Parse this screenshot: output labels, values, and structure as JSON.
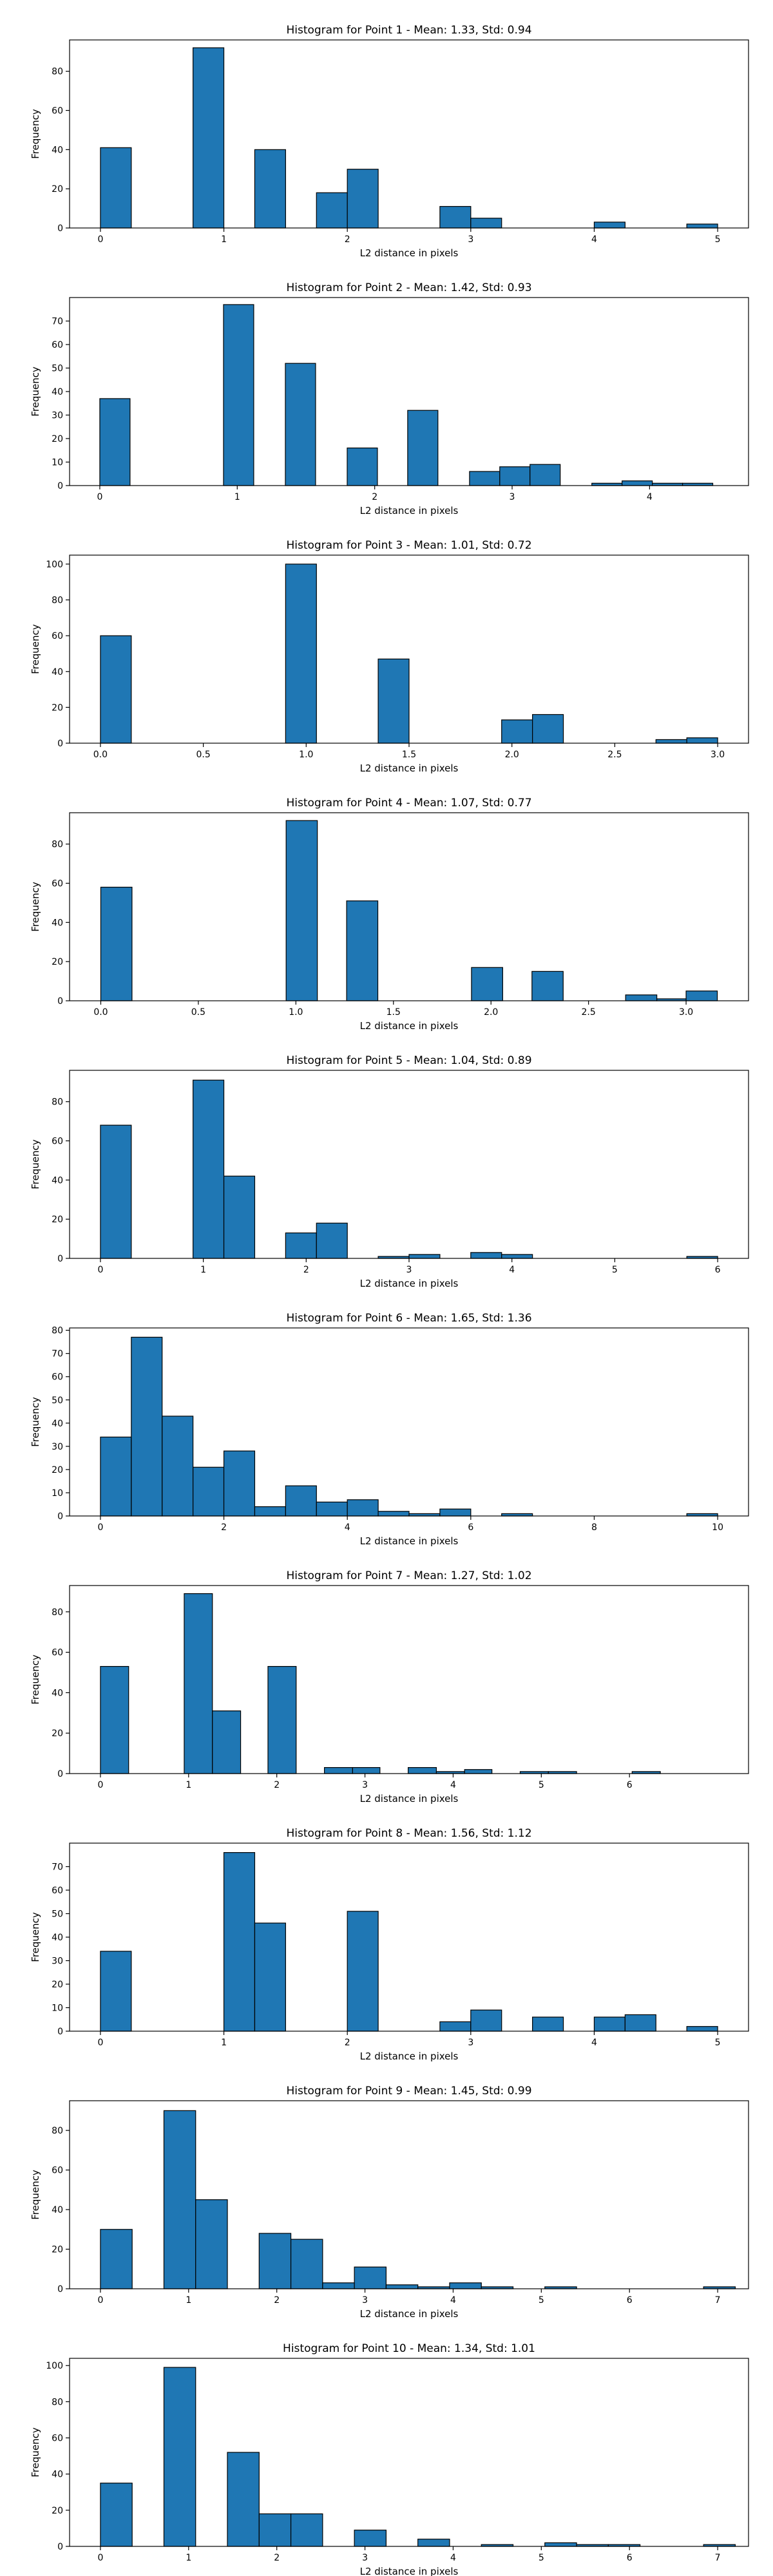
{
  "colors": {
    "bar_fill": "#1f77b4",
    "bar_edge": "#000000",
    "axis": "#000000",
    "background": "#ffffff"
  },
  "chart_data": [
    {
      "type": "bar",
      "title": "Histogram for Point 1 - Mean: 1.33, Std: 0.94",
      "xlabel": "L2 distance in pixels",
      "ylabel": "Frequency",
      "xlim": [
        -0.25,
        5.25
      ],
      "ylim": [
        0,
        96
      ],
      "xticks": [
        0,
        1,
        2,
        3,
        4,
        5
      ],
      "yticks": [
        0,
        20,
        40,
        60,
        80
      ],
      "bins": [
        {
          "x0": 0,
          "x1": 0.25,
          "value": 41
        },
        {
          "x0": 0.75,
          "x1": 1.0,
          "value": 92
        },
        {
          "x0": 1.25,
          "x1": 1.5,
          "value": 40
        },
        {
          "x0": 1.75,
          "x1": 2.0,
          "value": 18
        },
        {
          "x0": 2.0,
          "x1": 2.25,
          "value": 30
        },
        {
          "x0": 2.75,
          "x1": 3.0,
          "value": 11
        },
        {
          "x0": 3.0,
          "x1": 3.25,
          "value": 5
        },
        {
          "x0": 4.0,
          "x1": 4.25,
          "value": 3
        },
        {
          "x0": 4.75,
          "x1": 5.0,
          "value": 2
        }
      ]
    },
    {
      "type": "bar",
      "title": "Histogram for Point 2 - Mean: 1.42, Std: 0.93",
      "xlabel": "L2 distance in pixels",
      "ylabel": "Frequency",
      "xlim": [
        -0.22,
        4.72
      ],
      "ylim": [
        0,
        80
      ],
      "xticks": [
        0,
        1,
        2,
        3,
        4
      ],
      "yticks": [
        0,
        10,
        20,
        30,
        40,
        50,
        60,
        70
      ],
      "bins": [
        {
          "x0": 0,
          "x1": 0.22,
          "value": 37
        },
        {
          "x0": 0.9,
          "x1": 1.12,
          "value": 77
        },
        {
          "x0": 1.35,
          "x1": 1.57,
          "value": 52
        },
        {
          "x0": 1.8,
          "x1": 2.02,
          "value": 16
        },
        {
          "x0": 2.24,
          "x1": 2.46,
          "value": 32
        },
        {
          "x0": 2.69,
          "x1": 2.91,
          "value": 6
        },
        {
          "x0": 2.91,
          "x1": 3.13,
          "value": 8
        },
        {
          "x0": 3.13,
          "x1": 3.35,
          "value": 9
        },
        {
          "x0": 3.58,
          "x1": 3.8,
          "value": 1
        },
        {
          "x0": 3.8,
          "x1": 4.02,
          "value": 2
        },
        {
          "x0": 4.02,
          "x1": 4.24,
          "value": 1
        },
        {
          "x0": 4.24,
          "x1": 4.46,
          "value": 1
        }
      ]
    },
    {
      "type": "bar",
      "title": "Histogram for Point 3 - Mean: 1.01, Std: 0.72",
      "xlabel": "L2 distance in pixels",
      "ylabel": "Frequency",
      "xlim": [
        -0.15,
        3.15
      ],
      "ylim": [
        0,
        105
      ],
      "xticks": [
        0.0,
        0.5,
        1.0,
        1.5,
        2.0,
        2.5,
        3.0
      ],
      "yticks": [
        0,
        20,
        40,
        60,
        80,
        100
      ],
      "bins": [
        {
          "x0": 0,
          "x1": 0.15,
          "value": 60
        },
        {
          "x0": 0.9,
          "x1": 1.05,
          "value": 100
        },
        {
          "x0": 1.35,
          "x1": 1.5,
          "value": 47
        },
        {
          "x0": 1.95,
          "x1": 2.1,
          "value": 13
        },
        {
          "x0": 2.1,
          "x1": 2.25,
          "value": 16
        },
        {
          "x0": 2.7,
          "x1": 2.85,
          "value": 2
        },
        {
          "x0": 2.85,
          "x1": 3.0,
          "value": 3
        }
      ]
    },
    {
      "type": "bar",
      "title": "Histogram for Point 4 - Mean: 1.07, Std: 0.77",
      "xlabel": "L2 distance in pixels",
      "ylabel": "Frequency",
      "xlim": [
        -0.16,
        3.32
      ],
      "ylim": [
        0,
        96
      ],
      "xticks": [
        0.0,
        0.5,
        1.0,
        1.5,
        2.0,
        2.5,
        3.0
      ],
      "yticks": [
        0,
        20,
        40,
        60,
        80
      ],
      "bins": [
        {
          "x0": 0,
          "x1": 0.16,
          "value": 58
        },
        {
          "x0": 0.95,
          "x1": 1.11,
          "value": 92
        },
        {
          "x0": 1.26,
          "x1": 1.42,
          "value": 51
        },
        {
          "x0": 1.9,
          "x1": 2.06,
          "value": 17
        },
        {
          "x0": 2.21,
          "x1": 2.37,
          "value": 15
        },
        {
          "x0": 2.69,
          "x1": 2.85,
          "value": 3
        },
        {
          "x0": 2.85,
          "x1": 3.0,
          "value": 1
        },
        {
          "x0": 3.0,
          "x1": 3.16,
          "value": 5
        }
      ]
    },
    {
      "type": "bar",
      "title": "Histogram for Point 5 - Mean: 1.04, Std: 0.89",
      "xlabel": "L2 distance in pixels",
      "ylabel": "Frequency",
      "xlim": [
        -0.3,
        6.3
      ],
      "ylim": [
        0,
        96
      ],
      "xticks": [
        0,
        1,
        2,
        3,
        4,
        5,
        6
      ],
      "yticks": [
        0,
        20,
        40,
        60,
        80
      ],
      "bins": [
        {
          "x0": 0,
          "x1": 0.3,
          "value": 68
        },
        {
          "x0": 0.9,
          "x1": 1.2,
          "value": 91
        },
        {
          "x0": 1.2,
          "x1": 1.5,
          "value": 42
        },
        {
          "x0": 1.8,
          "x1": 2.1,
          "value": 13
        },
        {
          "x0": 2.1,
          "x1": 2.4,
          "value": 18
        },
        {
          "x0": 2.7,
          "x1": 3.0,
          "value": 1
        },
        {
          "x0": 3.0,
          "x1": 3.3,
          "value": 2
        },
        {
          "x0": 3.6,
          "x1": 3.9,
          "value": 3
        },
        {
          "x0": 3.9,
          "x1": 4.2,
          "value": 2
        },
        {
          "x0": 5.7,
          "x1": 6.0,
          "value": 1
        }
      ]
    },
    {
      "type": "bar",
      "title": "Histogram for Point 6 - Mean: 1.65, Std: 1.36",
      "xlabel": "L2 distance in pixels",
      "ylabel": "Frequency",
      "xlim": [
        -0.5,
        10.5
      ],
      "ylim": [
        0,
        81
      ],
      "xticks": [
        0,
        2,
        4,
        6,
        8,
        10
      ],
      "yticks": [
        0,
        10,
        20,
        30,
        40,
        50,
        60,
        70,
        80
      ],
      "bins": [
        {
          "x0": 0,
          "x1": 0.5,
          "value": 34
        },
        {
          "x0": 0.5,
          "x1": 1.0,
          "value": 77
        },
        {
          "x0": 1.0,
          "x1": 1.5,
          "value": 43
        },
        {
          "x0": 1.5,
          "x1": 2.0,
          "value": 21
        },
        {
          "x0": 2.0,
          "x1": 2.5,
          "value": 28
        },
        {
          "x0": 2.5,
          "x1": 3.0,
          "value": 4
        },
        {
          "x0": 3.0,
          "x1": 3.5,
          "value": 13
        },
        {
          "x0": 3.5,
          "x1": 4.0,
          "value": 6
        },
        {
          "x0": 4.0,
          "x1": 4.5,
          "value": 7
        },
        {
          "x0": 4.5,
          "x1": 5.0,
          "value": 2
        },
        {
          "x0": 5.0,
          "x1": 5.5,
          "value": 1
        },
        {
          "x0": 5.5,
          "x1": 6.0,
          "value": 3
        },
        {
          "x0": 6.5,
          "x1": 7.0,
          "value": 1
        },
        {
          "x0": 9.5,
          "x1": 10.0,
          "value": 1
        }
      ]
    },
    {
      "type": "bar",
      "title": "Histogram for Point 7 - Mean: 1.27, Std: 1.02",
      "xlabel": "L2 distance in pixels",
      "ylabel": "Frequency",
      "xlim": [
        -0.35,
        7.35
      ],
      "ylim": [
        0,
        93
      ],
      "xticks": [
        0,
        1,
        2,
        3,
        4,
        5,
        6
      ],
      "yticks": [
        0,
        20,
        40,
        60,
        80
      ],
      "bins": [
        {
          "x0": 0,
          "x1": 0.32,
          "value": 53
        },
        {
          "x0": 0.95,
          "x1": 1.27,
          "value": 89
        },
        {
          "x0": 1.27,
          "x1": 1.59,
          "value": 31
        },
        {
          "x0": 1.9,
          "x1": 2.22,
          "value": 53
        },
        {
          "x0": 2.54,
          "x1": 2.86,
          "value": 3
        },
        {
          "x0": 2.86,
          "x1": 3.17,
          "value": 3
        },
        {
          "x0": 3.49,
          "x1": 3.81,
          "value": 3
        },
        {
          "x0": 3.81,
          "x1": 4.13,
          "value": 1
        },
        {
          "x0": 4.13,
          "x1": 4.44,
          "value": 2
        },
        {
          "x0": 4.76,
          "x1": 5.08,
          "value": 1
        },
        {
          "x0": 5.08,
          "x1": 5.4,
          "value": 1
        },
        {
          "x0": 6.03,
          "x1": 6.35,
          "value": 1
        }
      ]
    },
    {
      "type": "bar",
      "title": "Histogram for Point 8 - Mean: 1.56, Std: 1.12",
      "xlabel": "L2 distance in pixels",
      "ylabel": "Frequency",
      "xlim": [
        -0.25,
        5.25
      ],
      "ylim": [
        0,
        80
      ],
      "xticks": [
        0,
        1,
        2,
        3,
        4,
        5
      ],
      "yticks": [
        0,
        10,
        20,
        30,
        40,
        50,
        60,
        70
      ],
      "bins": [
        {
          "x0": 0,
          "x1": 0.25,
          "value": 34
        },
        {
          "x0": 1.0,
          "x1": 1.25,
          "value": 76
        },
        {
          "x0": 1.25,
          "x1": 1.5,
          "value": 46
        },
        {
          "x0": 2.0,
          "x1": 2.25,
          "value": 51
        },
        {
          "x0": 2.75,
          "x1": 3.0,
          "value": 4
        },
        {
          "x0": 3.0,
          "x1": 3.25,
          "value": 9
        },
        {
          "x0": 3.5,
          "x1": 3.75,
          "value": 6
        },
        {
          "x0": 4.0,
          "x1": 4.25,
          "value": 6
        },
        {
          "x0": 4.25,
          "x1": 4.5,
          "value": 7
        },
        {
          "x0": 4.75,
          "x1": 5.0,
          "value": 2
        }
      ]
    },
    {
      "type": "bar",
      "title": "Histogram for Point 9 - Mean: 1.45, Std: 0.99",
      "xlabel": "L2 distance in pixels",
      "ylabel": "Frequency",
      "xlim": [
        -0.35,
        7.35
      ],
      "ylim": [
        0,
        95
      ],
      "xticks": [
        0,
        1,
        2,
        3,
        4,
        5,
        6,
        7
      ],
      "yticks": [
        0,
        20,
        40,
        60,
        80
      ],
      "bins": [
        {
          "x0": 0,
          "x1": 0.36,
          "value": 30
        },
        {
          "x0": 0.72,
          "x1": 1.08,
          "value": 90
        },
        {
          "x0": 1.08,
          "x1": 1.44,
          "value": 45
        },
        {
          "x0": 1.8,
          "x1": 2.16,
          "value": 28
        },
        {
          "x0": 2.16,
          "x1": 2.52,
          "value": 25
        },
        {
          "x0": 2.52,
          "x1": 2.88,
          "value": 3
        },
        {
          "x0": 2.88,
          "x1": 3.24,
          "value": 11
        },
        {
          "x0": 3.24,
          "x1": 3.6,
          "value": 2
        },
        {
          "x0": 3.6,
          "x1": 3.96,
          "value": 1
        },
        {
          "x0": 3.96,
          "x1": 4.32,
          "value": 3
        },
        {
          "x0": 4.32,
          "x1": 4.68,
          "value": 1
        },
        {
          "x0": 5.04,
          "x1": 5.4,
          "value": 1
        },
        {
          "x0": 6.84,
          "x1": 7.2,
          "value": 1
        }
      ]
    },
    {
      "type": "bar",
      "title": "Histogram for Point 10 - Mean: 1.34, Std: 1.01",
      "xlabel": "L2 distance in pixels",
      "ylabel": "Frequency",
      "xlim": [
        -0.35,
        7.35
      ],
      "ylim": [
        0,
        104
      ],
      "xticks": [
        0,
        1,
        2,
        3,
        4,
        5,
        6,
        7
      ],
      "yticks": [
        0,
        20,
        40,
        60,
        80,
        100
      ],
      "bins": [
        {
          "x0": 0,
          "x1": 0.36,
          "value": 35
        },
        {
          "x0": 0.72,
          "x1": 1.08,
          "value": 99
        },
        {
          "x0": 1.44,
          "x1": 1.8,
          "value": 52
        },
        {
          "x0": 1.8,
          "x1": 2.16,
          "value": 18
        },
        {
          "x0": 2.16,
          "x1": 2.52,
          "value": 18
        },
        {
          "x0": 2.88,
          "x1": 3.24,
          "value": 9
        },
        {
          "x0": 3.6,
          "x1": 3.96,
          "value": 4
        },
        {
          "x0": 4.32,
          "x1": 4.68,
          "value": 1
        },
        {
          "x0": 5.04,
          "x1": 5.4,
          "value": 2
        },
        {
          "x0": 5.4,
          "x1": 5.76,
          "value": 1
        },
        {
          "x0": 5.76,
          "x1": 6.12,
          "value": 1
        },
        {
          "x0": 6.84,
          "x1": 7.2,
          "value": 1
        }
      ]
    }
  ]
}
